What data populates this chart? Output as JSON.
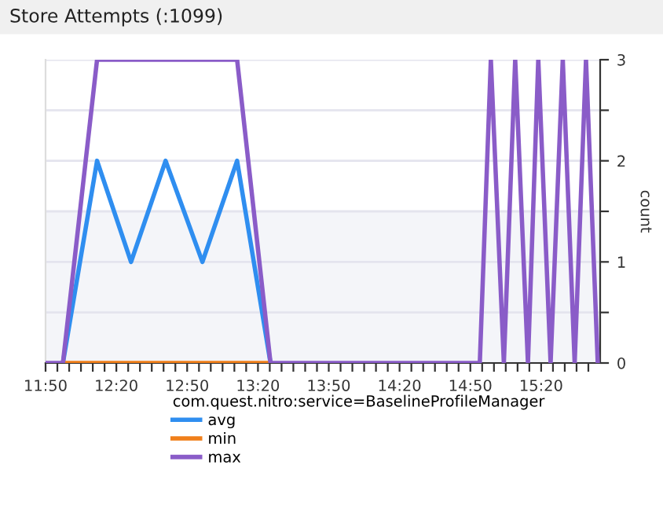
{
  "chart_data": {
    "type": "line",
    "title": "Store Attempts (:1099)",
    "ylabel": "count",
    "legend_title": "com.quest.nitro:service=BaselineProfileManager",
    "x": [
      11.8333,
      11.956,
      12.197,
      12.437,
      12.681,
      12.941,
      13.186,
      13.422,
      14.9,
      14.978,
      15.07,
      15.15,
      15.24,
      15.313,
      15.4,
      15.486,
      15.57,
      15.65,
      15.733
    ],
    "series": [
      {
        "name": "avg",
        "color": "#2f8ef0",
        "values": [
          null,
          0,
          2,
          1,
          2,
          1,
          2,
          0,
          null,
          null,
          null,
          null,
          null,
          null,
          null,
          null,
          null,
          null,
          null
        ]
      },
      {
        "name": "min",
        "color": "#f07f1a",
        "values": [
          null,
          0,
          0,
          0,
          0,
          0,
          0,
          0,
          null,
          null,
          null,
          null,
          null,
          null,
          null,
          null,
          null,
          null,
          null
        ]
      },
      {
        "name": "max",
        "color": "#8a5cc8",
        "values": [
          0,
          0,
          3,
          3,
          3,
          3,
          3,
          0,
          0,
          3,
          0,
          3,
          0,
          3,
          0,
          3,
          0,
          3,
          0
        ]
      }
    ],
    "xlim": [
      11.8333,
      15.75
    ],
    "xticks": [
      {
        "value": 11.8333,
        "label": "11:50"
      },
      {
        "value": 11.9167,
        "label": null
      },
      {
        "value": 12.0,
        "label": null
      },
      {
        "value": 12.0833,
        "label": null
      },
      {
        "value": 12.1667,
        "label": null
      },
      {
        "value": 12.25,
        "label": null
      },
      {
        "value": 12.3333,
        "label": "12:20"
      },
      {
        "value": 12.4167,
        "label": null
      },
      {
        "value": 12.5,
        "label": null
      },
      {
        "value": 12.5833,
        "label": null
      },
      {
        "value": 12.6667,
        "label": null
      },
      {
        "value": 12.75,
        "label": null
      },
      {
        "value": 12.8333,
        "label": "12:50"
      },
      {
        "value": 12.9167,
        "label": null
      },
      {
        "value": 13.0,
        "label": null
      },
      {
        "value": 13.0833,
        "label": null
      },
      {
        "value": 13.1667,
        "label": null
      },
      {
        "value": 13.25,
        "label": null
      },
      {
        "value": 13.3333,
        "label": "13:20"
      },
      {
        "value": 13.4167,
        "label": null
      },
      {
        "value": 13.5,
        "label": null
      },
      {
        "value": 13.5833,
        "label": null
      },
      {
        "value": 13.6667,
        "label": null
      },
      {
        "value": 13.75,
        "label": null
      },
      {
        "value": 13.8333,
        "label": "13:50"
      },
      {
        "value": 13.9167,
        "label": null
      },
      {
        "value": 14.0,
        "label": null
      },
      {
        "value": 14.0833,
        "label": null
      },
      {
        "value": 14.1667,
        "label": null
      },
      {
        "value": 14.25,
        "label": null
      },
      {
        "value": 14.3333,
        "label": "14:20"
      },
      {
        "value": 14.4167,
        "label": null
      },
      {
        "value": 14.5,
        "label": null
      },
      {
        "value": 14.5833,
        "label": null
      },
      {
        "value": 14.6667,
        "label": null
      },
      {
        "value": 14.75,
        "label": null
      },
      {
        "value": 14.8333,
        "label": "14:50"
      },
      {
        "value": 14.9167,
        "label": null
      },
      {
        "value": 15.0,
        "label": null
      },
      {
        "value": 15.0833,
        "label": null
      },
      {
        "value": 15.1667,
        "label": null
      },
      {
        "value": 15.25,
        "label": null
      },
      {
        "value": 15.3333,
        "label": "15:20"
      },
      {
        "value": 15.4167,
        "label": null
      },
      {
        "value": 15.5,
        "label": null
      },
      {
        "value": 15.5833,
        "label": null
      },
      {
        "value": 15.6667,
        "label": null
      }
    ],
    "ylim": [
      0,
      3
    ],
    "yticks": [
      0,
      {
        "value": 0.5,
        "label": null
      },
      1,
      {
        "value": 1.5,
        "label": null
      },
      2,
      {
        "value": 2.5,
        "label": null
      },
      3
    ],
    "bands": [
      {
        "axis": "y",
        "from": 0,
        "to": 1.5,
        "color": "#f4f5f9"
      }
    ],
    "grid": "y",
    "legend": "bottom",
    "marker": "none",
    "line_style": "solid"
  }
}
